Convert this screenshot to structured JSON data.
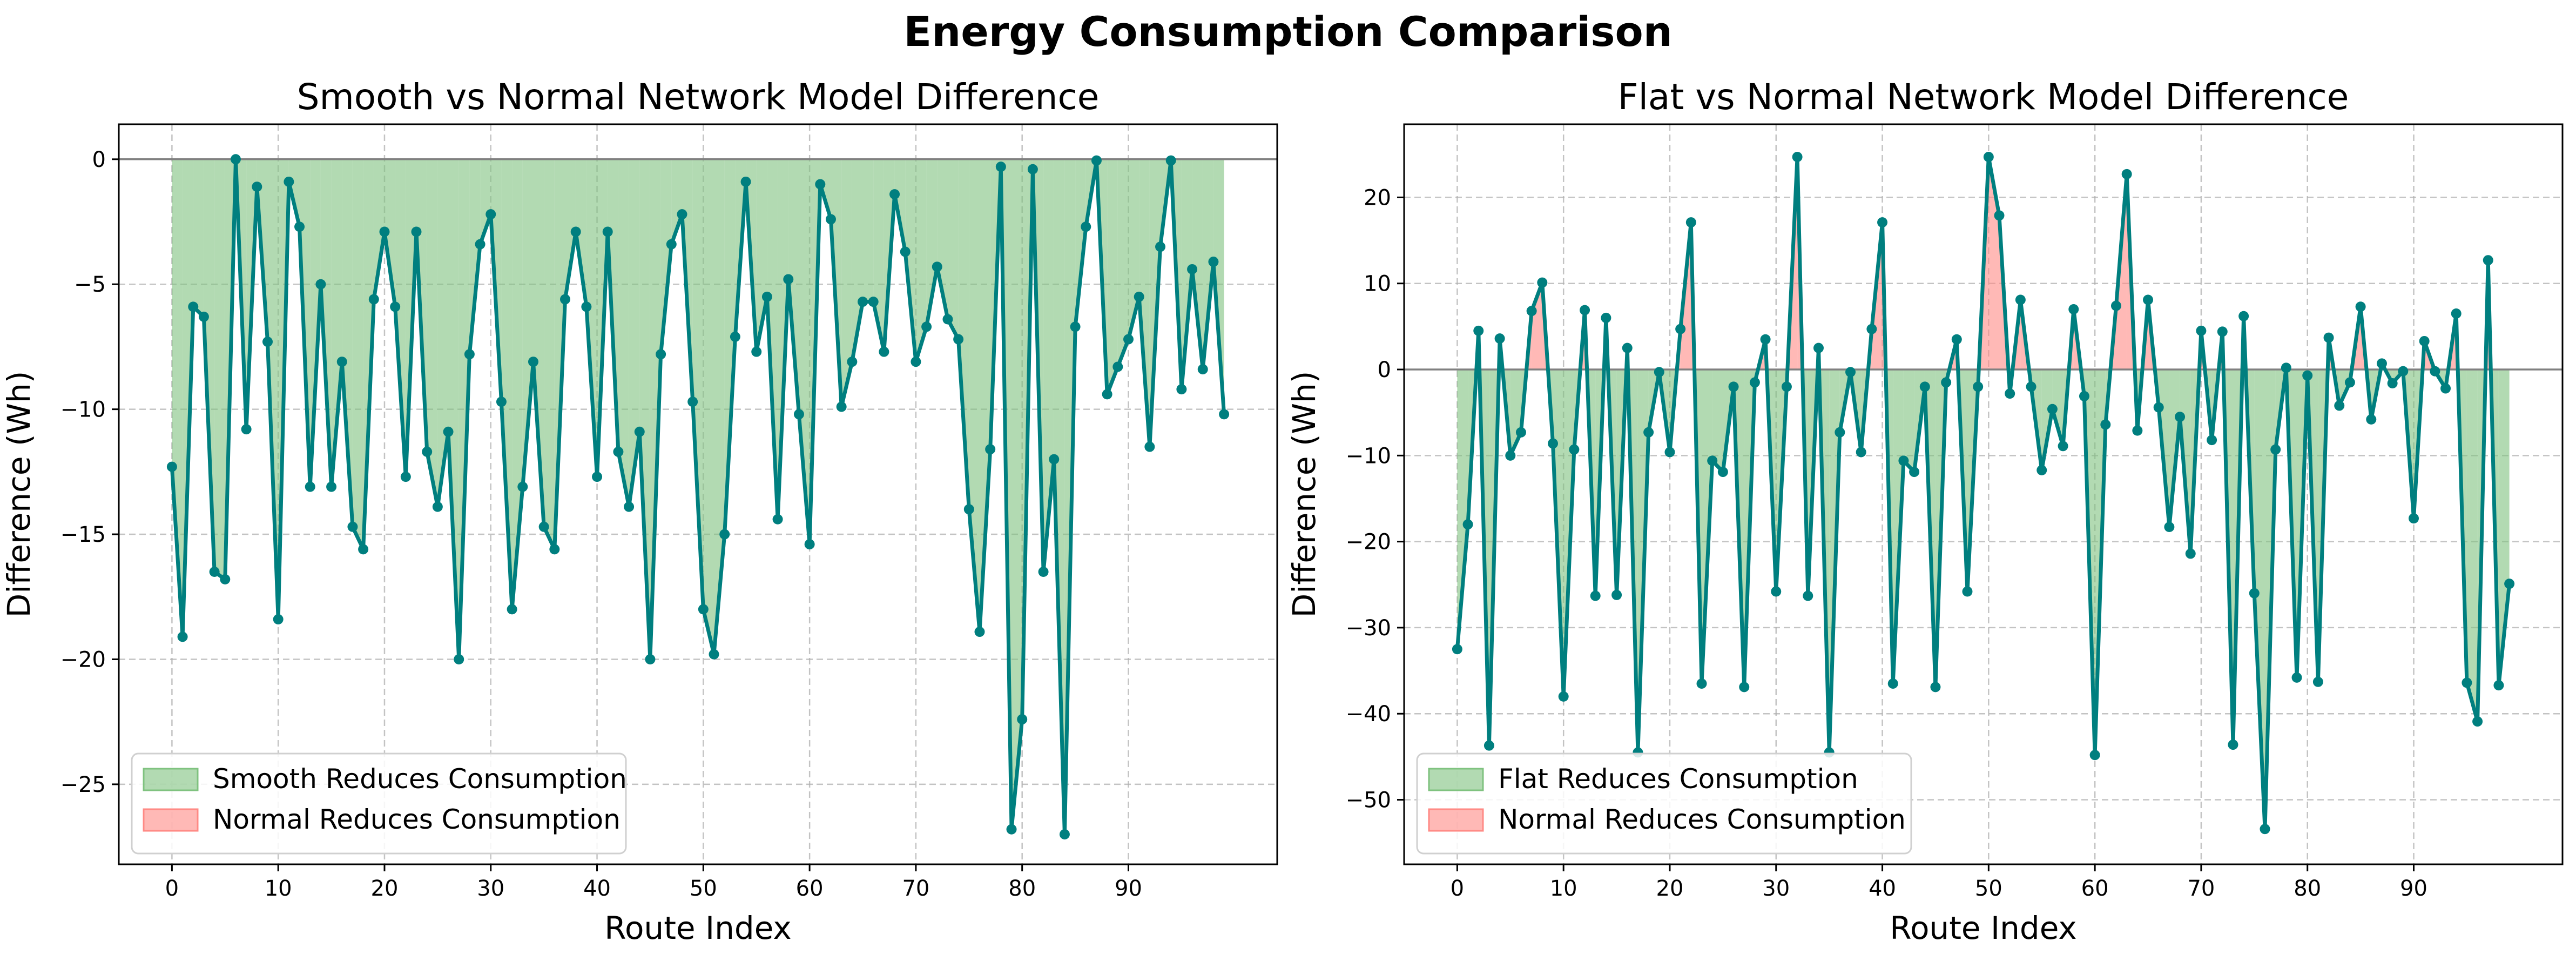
{
  "figure": {
    "title": "Energy Consumption Comparison"
  },
  "colors": {
    "line": "#007f7f",
    "reduce_fill": "#7fc27f",
    "normal_fill": "#ff8a85",
    "grid": "#b0b0b0",
    "zero_line": "#808080"
  },
  "chart_data": [
    {
      "type": "line",
      "title": "Smooth vs Normal Network Model Difference",
      "xlabel": "Route Index",
      "ylabel": "Difference (Wh)",
      "xlim": [
        -5,
        104
      ],
      "ylim": [
        -28.2,
        1.4
      ],
      "xticks": [
        0,
        10,
        20,
        30,
        40,
        50,
        60,
        70,
        80,
        90
      ],
      "yticks": [
        0,
        -5,
        -10,
        -15,
        -20,
        -25
      ],
      "ytick_labels": [
        "0",
        "−5",
        "−10",
        "−15",
        "−20",
        "−25"
      ],
      "grid": true,
      "legend_position": "lower-left",
      "legend": [
        "Smooth Reduces Consumption",
        "Normal Reduces Consumption"
      ],
      "x": [
        0,
        1,
        2,
        3,
        4,
        5,
        6,
        7,
        8,
        9,
        10,
        11,
        12,
        13,
        14,
        15,
        16,
        17,
        18,
        19,
        20,
        21,
        22,
        23,
        24,
        25,
        26,
        27,
        28,
        29,
        30,
        31,
        32,
        33,
        34,
        35,
        36,
        37,
        38,
        39,
        40,
        41,
        42,
        43,
        44,
        45,
        46,
        47,
        48,
        49,
        50,
        51,
        52,
        53,
        54,
        55,
        56,
        57,
        58,
        59,
        60,
        61,
        62,
        63,
        64,
        65,
        66,
        67,
        68,
        69,
        70,
        71,
        72,
        73,
        74,
        75,
        76,
        77,
        78,
        79,
        80,
        81,
        82,
        83,
        84,
        85,
        86,
        87,
        88,
        89,
        90,
        91,
        92,
        93,
        94,
        95,
        96,
        97,
        98,
        99
      ],
      "values": [
        -12.3,
        -19.1,
        -5.9,
        -6.3,
        -16.5,
        -16.8,
        0.0,
        -10.8,
        -1.1,
        -7.3,
        -18.4,
        -0.9,
        -2.7,
        -13.1,
        -5.0,
        -13.1,
        -8.1,
        -14.7,
        -15.6,
        -5.6,
        -2.9,
        -5.9,
        -12.7,
        -2.9,
        -11.7,
        -13.9,
        -10.9,
        -20.0,
        -7.8,
        -3.4,
        -2.2,
        -9.7,
        -18.0,
        -13.1,
        -8.1,
        -14.7,
        -15.6,
        -5.6,
        -2.9,
        -5.9,
        -12.7,
        -2.9,
        -11.7,
        -13.9,
        -10.9,
        -20.0,
        -7.8,
        -3.4,
        -2.2,
        -9.7,
        -18.0,
        -19.8,
        -15.0,
        -7.1,
        -0.9,
        -7.7,
        -5.5,
        -14.4,
        -4.8,
        -10.2,
        -15.4,
        -1.0,
        -2.4,
        -9.9,
        -8.1,
        -5.7,
        -5.7,
        -7.7,
        -1.4,
        -3.7,
        -8.1,
        -6.7,
        -4.3,
        -6.4,
        -7.2,
        -14.0,
        -18.9,
        -11.6,
        -0.3,
        -26.8,
        -22.4,
        -0.4,
        -16.5,
        -12.0,
        -27.0,
        -6.7,
        -2.7,
        -0.05,
        -9.4,
        -8.3,
        -7.2,
        -5.5,
        -11.5,
        -3.5,
        -0.05,
        -9.2,
        -4.4,
        -8.4,
        -4.1,
        -10.2
      ]
    },
    {
      "type": "line",
      "title": "Flat vs Normal Network Model Difference",
      "xlabel": "Route Index",
      "ylabel": "Difference (Wh)",
      "xlim": [
        -5,
        104
      ],
      "ylim": [
        -57.5,
        28.5
      ],
      "xticks": [
        0,
        10,
        20,
        30,
        40,
        50,
        60,
        70,
        80,
        90
      ],
      "yticks": [
        20,
        10,
        0,
        -10,
        -20,
        -30,
        -40,
        -50
      ],
      "ytick_labels": [
        "20",
        "10",
        "0",
        "−10",
        "−20",
        "−30",
        "−40",
        "−50"
      ],
      "grid": true,
      "legend_position": "lower-left",
      "legend": [
        "Flat Reduces Consumption",
        "Normal Reduces Consumption"
      ],
      "x": [
        0,
        1,
        2,
        3,
        4,
        5,
        6,
        7,
        8,
        9,
        10,
        11,
        12,
        13,
        14,
        15,
        16,
        17,
        18,
        19,
        20,
        21,
        22,
        23,
        24,
        25,
        26,
        27,
        28,
        29,
        30,
        31,
        32,
        33,
        34,
        35,
        36,
        37,
        38,
        39,
        40,
        41,
        42,
        43,
        44,
        45,
        46,
        47,
        48,
        49,
        50,
        51,
        52,
        53,
        54,
        55,
        56,
        57,
        58,
        59,
        60,
        61,
        62,
        63,
        64,
        65,
        66,
        67,
        68,
        69,
        70,
        71,
        72,
        73,
        74,
        75,
        76,
        77,
        78,
        79,
        80,
        81,
        82,
        83,
        84,
        85,
        86,
        87,
        88,
        89,
        90,
        91,
        92,
        93,
        94,
        95,
        96,
        97,
        98,
        99
      ],
      "values": [
        -32.5,
        -18.0,
        4.5,
        -43.7,
        3.6,
        -10.0,
        -7.3,
        6.8,
        10.1,
        -8.6,
        -38.0,
        -9.3,
        6.9,
        -26.3,
        6.0,
        -26.2,
        2.5,
        -44.5,
        -7.3,
        -0.3,
        -9.6,
        4.7,
        17.1,
        -36.5,
        -10.6,
        -11.9,
        -2.0,
        -36.9,
        -1.5,
        3.5,
        -25.8,
        -2.0,
        24.7,
        -26.3,
        2.5,
        -44.5,
        -7.3,
        -0.3,
        -9.6,
        4.7,
        17.1,
        -36.5,
        -10.6,
        -11.9,
        -2.0,
        -36.9,
        -1.5,
        3.5,
        -25.8,
        -2.0,
        24.7,
        17.9,
        -2.8,
        8.1,
        -2.0,
        -11.7,
        -4.6,
        -8.9,
        7.0,
        -3.1,
        -44.8,
        -6.4,
        7.4,
        22.7,
        -7.1,
        8.1,
        -4.4,
        -18.3,
        -5.5,
        -21.4,
        4.5,
        -8.2,
        4.4,
        -43.6,
        6.2,
        -26.0,
        -53.4,
        -9.3,
        0.2,
        -35.8,
        -0.7,
        -36.3,
        3.7,
        -4.2,
        -1.5,
        7.3,
        -5.8,
        0.7,
        -1.6,
        -0.2,
        -17.3,
        3.3,
        -0.2,
        -2.2,
        6.5,
        -36.4,
        -40.9,
        12.7,
        -36.7,
        -24.9
      ]
    }
  ]
}
